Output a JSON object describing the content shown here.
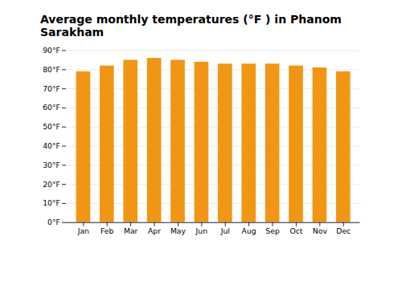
{
  "chart_data": {
    "type": "bar",
    "title": "Average monthly temperatures (°F ) in Phanom Sarakham",
    "categories": [
      "Jan",
      "Feb",
      "Mar",
      "Apr",
      "May",
      "Jun",
      "Jul",
      "Aug",
      "Sep",
      "Oct",
      "Nov",
      "Dec"
    ],
    "values": [
      79,
      82,
      85,
      86,
      85,
      84,
      83,
      83,
      83,
      82,
      81,
      79
    ],
    "color": "#F09614",
    "ylim": [
      0,
      90
    ],
    "yticks": [
      {
        "value": 0,
        "label": "0°F"
      },
      {
        "value": 10,
        "label": "10°F"
      },
      {
        "value": 20,
        "label": "20°F"
      },
      {
        "value": 30,
        "label": "30°F"
      },
      {
        "value": 40,
        "label": "40°F"
      },
      {
        "value": 50,
        "label": "50°F"
      },
      {
        "value": 60,
        "label": "60°F"
      },
      {
        "value": 70,
        "label": "70°F"
      },
      {
        "value": 80,
        "label": "80°F"
      },
      {
        "value": 90,
        "label": "90°F"
      }
    ],
    "grid": true
  }
}
